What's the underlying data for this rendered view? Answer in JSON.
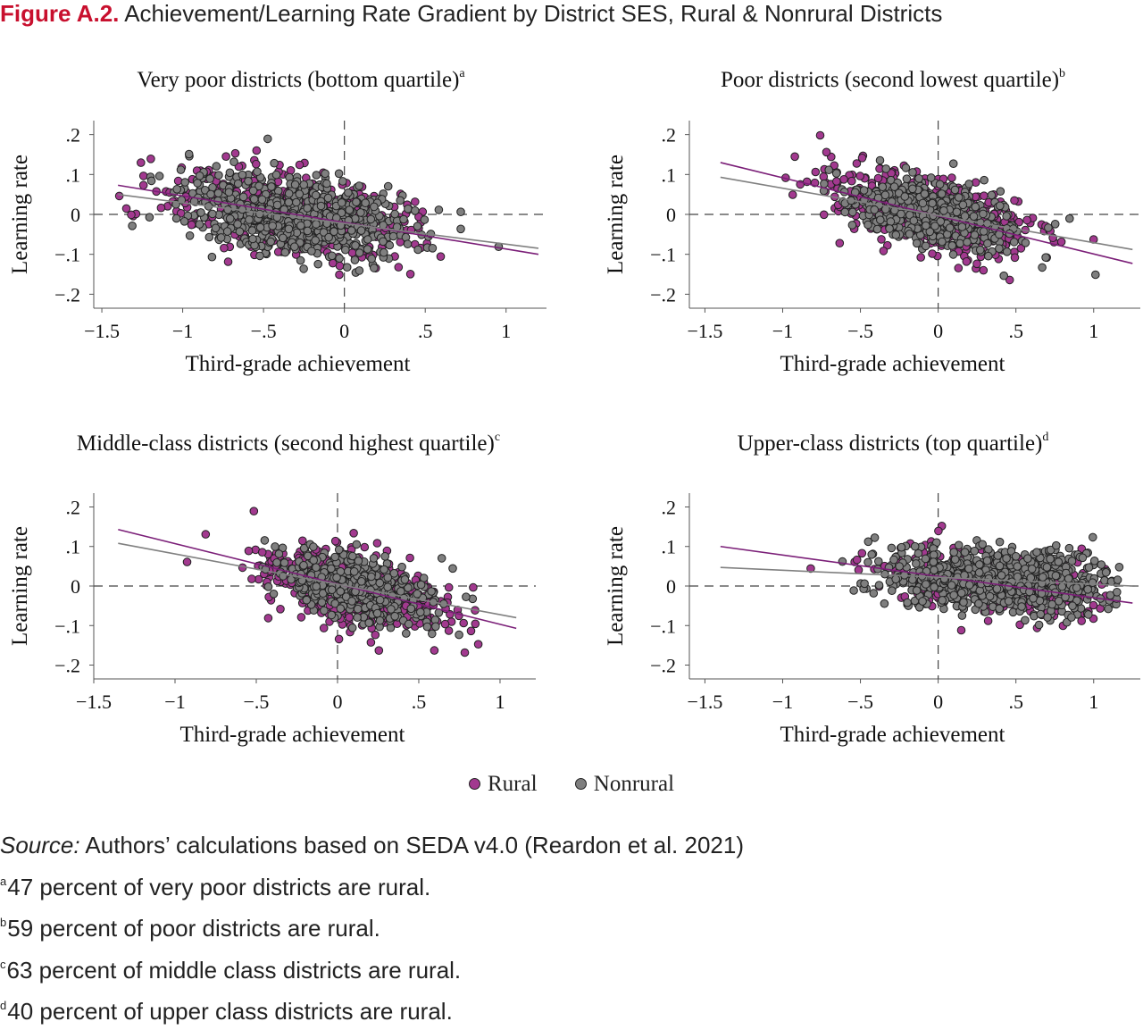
{
  "figure": {
    "label": "Figure A.2.",
    "title": "Achievement/Learning Rate Gradient by District SES, Rural & Nonrural Districts"
  },
  "colors": {
    "rural": "#a2398f",
    "nonrural": "#7f7f7f",
    "rural_line": "#7b1f78",
    "nonrural_line": "#808080",
    "title_accent": "#c8102e"
  },
  "legend": [
    {
      "name": "Rural",
      "color": "#a2398f"
    },
    {
      "name": "Nonrural",
      "color": "#7f7f7f"
    }
  ],
  "chart_data": [
    {
      "type": "scatter",
      "title": "Very poor districts (bottom quartile)",
      "footnote_marker": "a",
      "xlabel": "Third-grade achievement",
      "ylabel": "Learning rate",
      "xlim": [
        -1.55,
        1.25
      ],
      "ylim": [
        -0.235,
        0.235
      ],
      "xticks": [
        -1.5,
        -1,
        -0.5,
        0,
        0.5,
        1
      ],
      "xtick_labels": [
        "−1.5",
        "−1",
        "−.5",
        "0",
        ".5",
        "1"
      ],
      "yticks": [
        -0.2,
        -0.1,
        0,
        0.1,
        0.2
      ],
      "ytick_labels": [
        "−.2",
        "−.1",
        "0",
        ".1",
        ".2"
      ],
      "reference_lines": {
        "x": 0,
        "y": 0
      },
      "series": [
        {
          "name": "Rural",
          "n": 520,
          "x_center": -0.35,
          "x_spread": 0.38,
          "y_spread": 0.05,
          "fit": {
            "x": [
              -1.4,
              1.2
            ],
            "y": [
              0.073,
              -0.1
            ]
          }
        },
        {
          "name": "Nonrural",
          "n": 700,
          "x_center": -0.3,
          "x_spread": 0.35,
          "y_spread": 0.045,
          "fit": {
            "x": [
              -1.4,
              1.2
            ],
            "y": [
              0.05,
              -0.085
            ]
          }
        }
      ]
    },
    {
      "type": "scatter",
      "title": "Poor districts (second lowest quartile)",
      "footnote_marker": "b",
      "xlabel": "Third-grade achievement",
      "ylabel": "Learning rate",
      "xlim": [
        -1.6,
        1.3
      ],
      "ylim": [
        -0.235,
        0.235
      ],
      "xticks": [
        -1.5,
        -1,
        -0.5,
        0,
        0.5,
        1
      ],
      "xtick_labels": [
        "−1.5",
        "−1",
        "−.5",
        "0",
        ".5",
        "1"
      ],
      "yticks": [
        -0.2,
        -0.1,
        0,
        0.1,
        0.2
      ],
      "ytick_labels": [
        "−.2",
        "−.1",
        "0",
        ".1",
        ".2"
      ],
      "reference_lines": {
        "x": 0,
        "y": 0
      },
      "series": [
        {
          "name": "Rural",
          "n": 560,
          "x_center": -0.05,
          "x_spread": 0.32,
          "y_spread": 0.045,
          "fit": {
            "x": [
              -1.4,
              1.25
            ],
            "y": [
              0.13,
              -0.123
            ]
          }
        },
        {
          "name": "Nonrural",
          "n": 520,
          "x_center": -0.05,
          "x_spread": 0.28,
          "y_spread": 0.04,
          "fit": {
            "x": [
              -1.4,
              1.25
            ],
            "y": [
              0.093,
              -0.088
            ]
          }
        }
      ]
    },
    {
      "type": "scatter",
      "title": "Middle-class districts (second highest quartile)",
      "footnote_marker": "c",
      "xlabel": "Third-grade achievement",
      "ylabel": "Learning rate",
      "xlim": [
        -1.5,
        1.22
      ],
      "ylim": [
        -0.235,
        0.235
      ],
      "xticks": [
        -1.5,
        -1,
        -0.5,
        0,
        0.5,
        1
      ],
      "xtick_labels": [
        "−1.5",
        "−1",
        "−.5",
        "0",
        ".5",
        "1"
      ],
      "yticks": [
        -0.2,
        -0.1,
        0,
        0.1,
        0.2
      ],
      "ytick_labels": [
        "−.2",
        "−.1",
        "0",
        ".1",
        ".2"
      ],
      "reference_lines": {
        "x": 0,
        "y": 0
      },
      "series": [
        {
          "name": "Rural",
          "n": 560,
          "x_center": 0.1,
          "x_spread": 0.28,
          "y_spread": 0.045,
          "fit": {
            "x": [
              -1.35,
              1.1
            ],
            "y": [
              0.143,
              -0.107
            ]
          }
        },
        {
          "name": "Nonrural",
          "n": 480,
          "x_center": 0.12,
          "x_spread": 0.22,
          "y_spread": 0.04,
          "fit": {
            "x": [
              -1.35,
              1.1
            ],
            "y": [
              0.108,
              -0.08
            ]
          }
        }
      ]
    },
    {
      "type": "scatter",
      "title": "Upper-class districts (top quartile)",
      "footnote_marker": "d",
      "xlabel": "Third-grade achievement",
      "ylabel": "Learning rate",
      "xlim": [
        -1.6,
        1.3
      ],
      "ylim": [
        -0.235,
        0.235
      ],
      "xticks": [
        -1.5,
        -1,
        -0.5,
        0,
        0.5,
        1
      ],
      "xtick_labels": [
        "−1.5",
        "−1",
        "−.5",
        "0",
        ".5",
        "1"
      ],
      "yticks": [
        -0.2,
        -0.1,
        0,
        0.1,
        0.2
      ],
      "ytick_labels": [
        "−.2",
        "−.1",
        "0",
        ".1",
        ".2"
      ],
      "reference_lines": {
        "x": 0,
        "y": 0
      },
      "series": [
        {
          "name": "Rural",
          "n": 330,
          "x_center": 0.35,
          "x_spread": 0.35,
          "y_spread": 0.04,
          "fit": {
            "x": [
              -1.4,
              1.25
            ],
            "y": [
              0.1,
              -0.043
            ]
          }
        },
        {
          "name": "Nonrural",
          "n": 850,
          "x_center": 0.4,
          "x_spread": 0.38,
          "y_spread": 0.038,
          "fit": {
            "x": [
              -1.4,
              1.25
            ],
            "y": [
              0.047,
              0.0
            ]
          }
        }
      ]
    }
  ],
  "notes": {
    "source_label": "Source:",
    "source_text": " Authors’ calculations based on SEDA v4.0 (Reardon et al. 2021)",
    "footnotes": [
      {
        "marker": "a",
        "text": "47 percent of very poor districts are rural."
      },
      {
        "marker": "b",
        "text": "59 percent of poor districts are rural."
      },
      {
        "marker": "c",
        "text": "63 percent of middle class districts are rural."
      },
      {
        "marker": "d",
        "text": "40 percent of upper class districts are rural."
      }
    ]
  }
}
